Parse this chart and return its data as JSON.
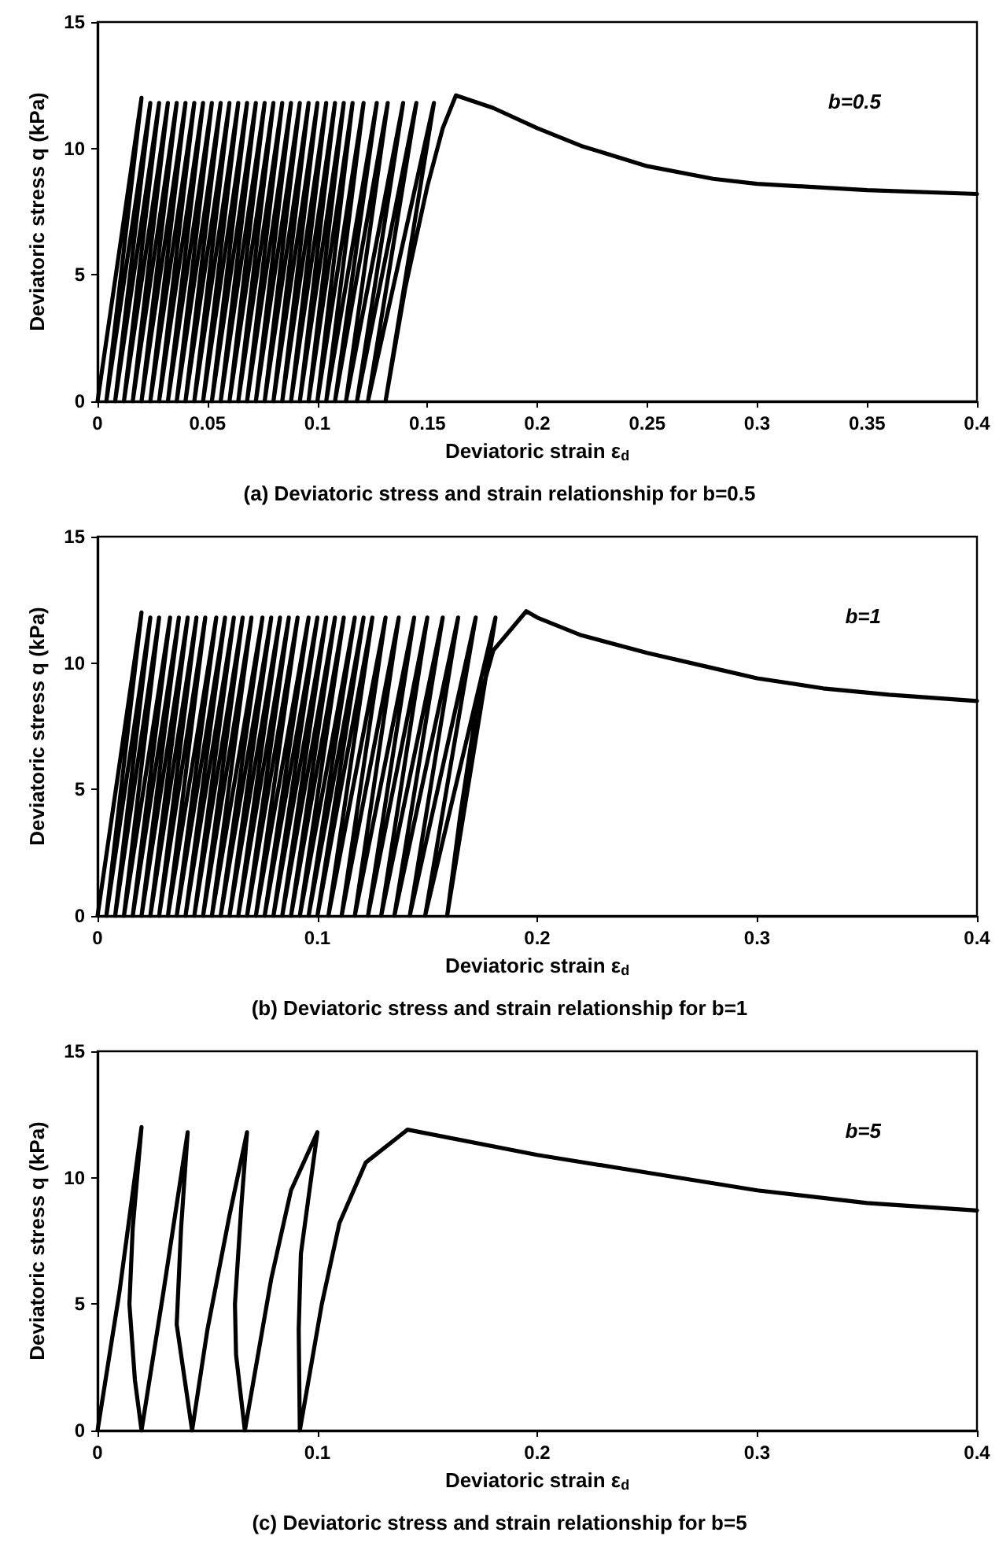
{
  "chart_data": [
    {
      "type": "line",
      "title": "(a) Deviatoric stress and strain relationship for b=0.5",
      "xlabel": "Deviatoric strain ε$_{d}$",
      "ylabel": "Deviatoric stress q (kPa)",
      "annotations": [
        "b=0.5"
      ],
      "marker": "none",
      "line_style": "solid",
      "xlim": [
        0,
        0.4
      ],
      "xticks": [
        0,
        0.05,
        0.1,
        0.15,
        0.2,
        0.25,
        0.3,
        0.35,
        0.4
      ],
      "ylim": [
        0,
        15
      ],
      "yticks": [
        0,
        5,
        10,
        15
      ],
      "series": [
        {
          "color": "#000000",
          "x": [
            0,
            0.02,
            0.004,
            0.024,
            0.008,
            0.028,
            0.012,
            0.032,
            0.016,
            0.036,
            0.02,
            0.04,
            0.024,
            0.044,
            0.028,
            0.048,
            0.032,
            0.052,
            0.036,
            0.056,
            0.04,
            0.06,
            0.044,
            0.064,
            0.048,
            0.068,
            0.052,
            0.072,
            0.056,
            0.076,
            0.06,
            0.08,
            0.064,
            0.084,
            0.068,
            0.088,
            0.072,
            0.092,
            0.076,
            0.096,
            0.08,
            0.1,
            0.084,
            0.104,
            0.088,
            0.108,
            0.092,
            0.112,
            0.096,
            0.116,
            0.1,
            0.121,
            0.104,
            0.127,
            0.108,
            0.132,
            0.113,
            0.139,
            0.118,
            0.145,
            0.123,
            0.153,
            0.131,
            0.14,
            0.15,
            0.157,
            0.163,
            0.18,
            0.2,
            0.22,
            0.25,
            0.28,
            0.3,
            0.35,
            0.4
          ],
          "values": [
            0,
            12,
            0,
            11.8,
            0,
            11.8,
            0,
            11.8,
            0,
            11.8,
            0,
            11.8,
            0,
            11.8,
            0,
            11.8,
            0,
            11.8,
            0,
            11.8,
            0,
            11.8,
            0,
            11.8,
            0,
            11.8,
            0,
            11.8,
            0,
            11.8,
            0,
            11.8,
            0,
            11.8,
            0,
            11.8,
            0,
            11.8,
            0,
            11.8,
            0,
            11.8,
            0,
            11.8,
            0,
            11.8,
            0,
            11.8,
            0,
            11.8,
            0,
            11.8,
            0,
            11.8,
            0,
            11.8,
            0,
            11.8,
            0,
            11.8,
            0,
            11.8,
            0,
            4.5,
            8.5,
            10.8,
            12.1,
            11.6,
            10.8,
            10.1,
            9.3,
            8.8,
            8.6,
            8.35,
            8.2
          ]
        }
      ]
    },
    {
      "type": "line",
      "title": "(b) Deviatoric stress and strain relationship for b=1",
      "xlabel": "Deviatoric strain ε$_{d}$",
      "ylabel": "Deviatoric stress q (kPa)",
      "annotations": [
        "b=1"
      ],
      "marker": "none",
      "line_style": "solid",
      "xlim": [
        0,
        0.4
      ],
      "xticks": [
        0,
        0.1,
        0.2,
        0.3,
        0.4
      ],
      "ylim": [
        0,
        15
      ],
      "yticks": [
        0,
        5,
        10,
        15
      ],
      "series": [
        {
          "color": "#000000",
          "x": [
            0,
            0.02,
            0.004,
            0.024,
            0.008,
            0.028,
            0.012,
            0.033,
            0.016,
            0.037,
            0.02,
            0.041,
            0.024,
            0.045,
            0.028,
            0.049,
            0.032,
            0.054,
            0.036,
            0.058,
            0.04,
            0.062,
            0.044,
            0.066,
            0.048,
            0.07,
            0.052,
            0.075,
            0.056,
            0.079,
            0.06,
            0.083,
            0.064,
            0.087,
            0.068,
            0.091,
            0.072,
            0.096,
            0.076,
            0.1,
            0.08,
            0.104,
            0.084,
            0.108,
            0.088,
            0.112,
            0.092,
            0.117,
            0.096,
            0.121,
            0.1,
            0.125,
            0.105,
            0.131,
            0.111,
            0.137,
            0.117,
            0.144,
            0.123,
            0.15,
            0.129,
            0.157,
            0.135,
            0.164,
            0.142,
            0.172,
            0.149,
            0.181,
            0.159,
            0.165,
            0.172,
            0.18,
            0.195,
            0.2,
            0.22,
            0.25,
            0.28,
            0.3,
            0.33,
            0.36,
            0.4
          ],
          "values": [
            0,
            12,
            0,
            11.8,
            0,
            11.8,
            0,
            11.8,
            0,
            11.8,
            0,
            11.8,
            0,
            11.8,
            0,
            11.8,
            0,
            11.8,
            0,
            11.8,
            0,
            11.8,
            0,
            11.8,
            0,
            11.8,
            0,
            11.8,
            0,
            11.8,
            0,
            11.8,
            0,
            11.8,
            0,
            11.8,
            0,
            11.8,
            0,
            11.8,
            0,
            11.8,
            0,
            11.8,
            0,
            11.8,
            0,
            11.8,
            0,
            11.8,
            0,
            11.8,
            0,
            11.8,
            0,
            11.8,
            0,
            11.8,
            0,
            11.8,
            0,
            11.8,
            0,
            11.8,
            0,
            11.8,
            0,
            11.8,
            0,
            4,
            8,
            10.5,
            12.05,
            11.8,
            11.1,
            10.4,
            9.8,
            9.4,
            9,
            8.75,
            8.5
          ]
        }
      ]
    },
    {
      "type": "line",
      "title": "(c) Deviatoric stress and strain relationship for b=5",
      "xlabel": "Deviatoric strain ε$_{d}$",
      "ylabel": "Deviatoric stress q (kPa)",
      "annotations": [
        "b=5"
      ],
      "marker": "none",
      "line_style": "solid",
      "xlim": [
        0,
        0.4
      ],
      "xticks": [
        0,
        0.1,
        0.2,
        0.3,
        0.4
      ],
      "ylim": [
        0,
        15
      ],
      "yticks": [
        0,
        5,
        10,
        15
      ],
      "series": [
        {
          "color": "#000000",
          "x": [
            0,
            0.01,
            0.02,
            0.016,
            0.0145,
            0.017,
            0.02,
            0.03,
            0.041,
            0.038,
            0.036,
            0.043,
            0.05,
            0.06,
            0.068,
            0.0655,
            0.0625,
            0.063,
            0.067,
            0.079,
            0.088,
            0.1,
            0.0925,
            0.0915,
            0.092,
            0.102,
            0.11,
            0.122,
            0.141,
            0.2,
            0.25,
            0.3,
            0.35,
            0.4
          ],
          "values": [
            0,
            5.5,
            12,
            8,
            5,
            2,
            0,
            5.5,
            11.8,
            8,
            4.2,
            0,
            4,
            8.5,
            11.8,
            9,
            5,
            3,
            0,
            6,
            9.5,
            11.8,
            7,
            4,
            0,
            5,
            8.2,
            10.6,
            11.9,
            10.9,
            10.2,
            9.5,
            9,
            8.7
          ]
        }
      ]
    }
  ]
}
